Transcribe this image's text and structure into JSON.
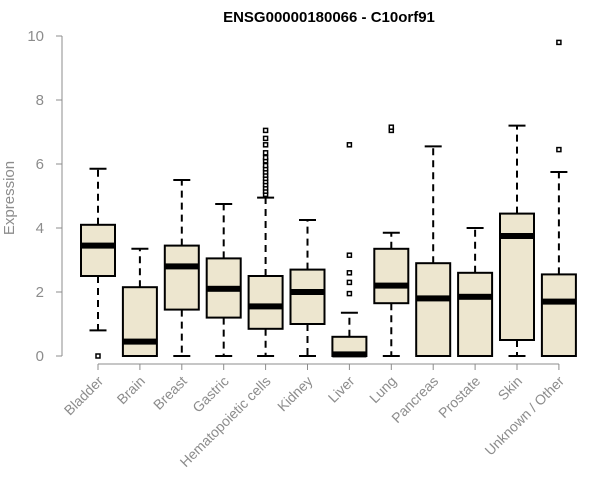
{
  "chart_data": {
    "type": "boxplot",
    "title": "ENSG00000180066 - C10orf91",
    "ylabel": "Expression",
    "xlabel": "",
    "ylim": [
      0,
      10
    ],
    "yticks": [
      "0",
      "2",
      "4",
      "6",
      "8",
      "10"
    ],
    "box_fill": "#ede6cf",
    "box_stroke": "#000000",
    "categories": [
      "Bladder",
      "Brain",
      "Breast",
      "Gastric",
      "Hematopoietic cells",
      "Kidney",
      "Liver",
      "Lung",
      "Pancreas",
      "Prostate",
      "Skin",
      "Unknown / Other"
    ],
    "boxes": [
      {
        "min": 0.8,
        "q1": 2.5,
        "median": 3.45,
        "q3": 4.1,
        "max": 5.85,
        "outliers": [
          0.0
        ]
      },
      {
        "min": 0.0,
        "q1": 0.0,
        "median": 0.45,
        "q3": 2.15,
        "max": 3.35,
        "outliers": []
      },
      {
        "min": 0.0,
        "q1": 1.45,
        "median": 2.8,
        "q3": 3.45,
        "max": 5.5,
        "outliers": []
      },
      {
        "min": 0.0,
        "q1": 1.2,
        "median": 2.1,
        "q3": 3.05,
        "max": 4.75,
        "outliers": []
      },
      {
        "min": 0.0,
        "q1": 0.85,
        "median": 1.55,
        "q3": 2.5,
        "max": 4.95,
        "outliers": [
          5.05,
          5.15,
          5.25,
          5.35,
          5.45,
          5.55,
          5.65,
          5.75,
          5.85,
          5.95,
          6.1,
          6.2,
          6.35,
          6.6,
          6.8,
          7.05
        ]
      },
      {
        "min": 0.0,
        "q1": 1.0,
        "median": 2.0,
        "q3": 2.7,
        "max": 4.25,
        "outliers": []
      },
      {
        "min": 0.0,
        "q1": 0.0,
        "median": 0.05,
        "q3": 0.6,
        "max": 1.35,
        "outliers": [
          1.95,
          2.3,
          2.6,
          3.15,
          6.6
        ]
      },
      {
        "min": 0.0,
        "q1": 1.65,
        "median": 2.2,
        "q3": 3.35,
        "max": 3.85,
        "outliers": [
          7.05,
          7.15
        ]
      },
      {
        "min": 0.0,
        "q1": 0.0,
        "median": 1.8,
        "q3": 2.9,
        "max": 6.55,
        "outliers": []
      },
      {
        "min": 0.0,
        "q1": 0.0,
        "median": 1.85,
        "q3": 2.6,
        "max": 4.0,
        "outliers": []
      },
      {
        "min": 0.0,
        "q1": 0.5,
        "median": 3.75,
        "q3": 4.45,
        "max": 7.2,
        "outliers": []
      },
      {
        "min": 0.0,
        "q1": 0.0,
        "median": 1.7,
        "q3": 2.55,
        "max": 5.75,
        "outliers": [
          6.45,
          9.8
        ]
      }
    ]
  }
}
